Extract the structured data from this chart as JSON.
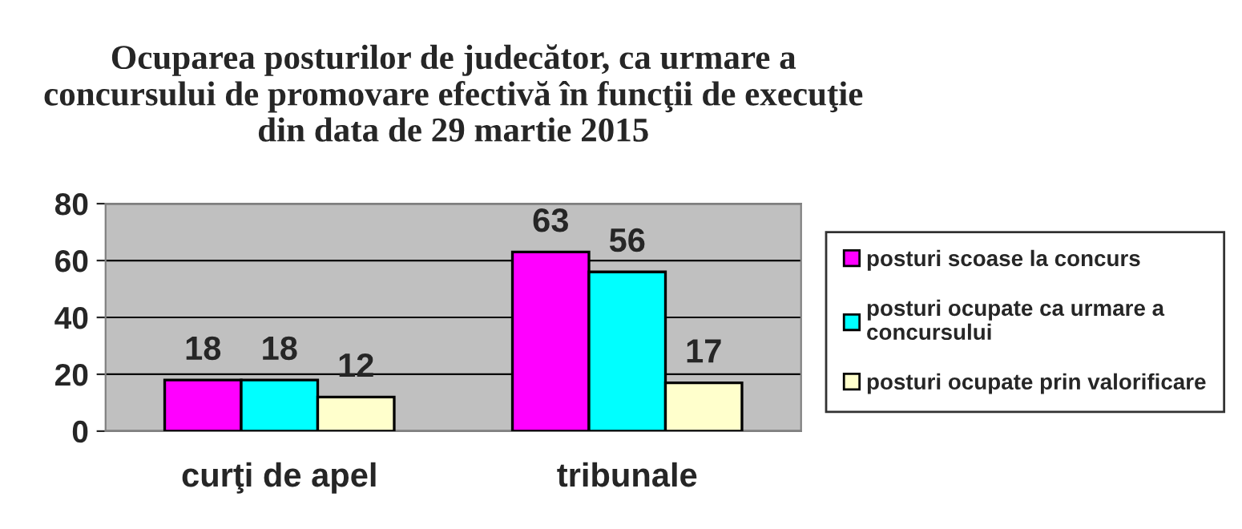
{
  "chart_data": {
    "type": "bar",
    "title": "Ocuparea posturilor de judecător, ca urmare a\nconcursului de promovare efectivă în funcţii de execuţie\ndin data de 29 martie 2015",
    "categories": [
      "curţi de apel",
      "tribunale"
    ],
    "series": [
      {
        "name": "posturi scoase la concurs",
        "color": "#ff00ff",
        "values": [
          18,
          63
        ]
      },
      {
        "name": "posturi ocupate ca urmare a\nconcursului",
        "color": "#00ffff",
        "values": [
          18,
          56
        ]
      },
      {
        "name": "posturi ocupate prin valorificare",
        "color": "#ffffcc",
        "values": [
          12,
          17
        ]
      }
    ],
    "ylim": [
      0,
      80
    ],
    "yticks": [
      0,
      20,
      40,
      60,
      80
    ],
    "grid": "y",
    "legend": "right",
    "data_labels": true
  }
}
